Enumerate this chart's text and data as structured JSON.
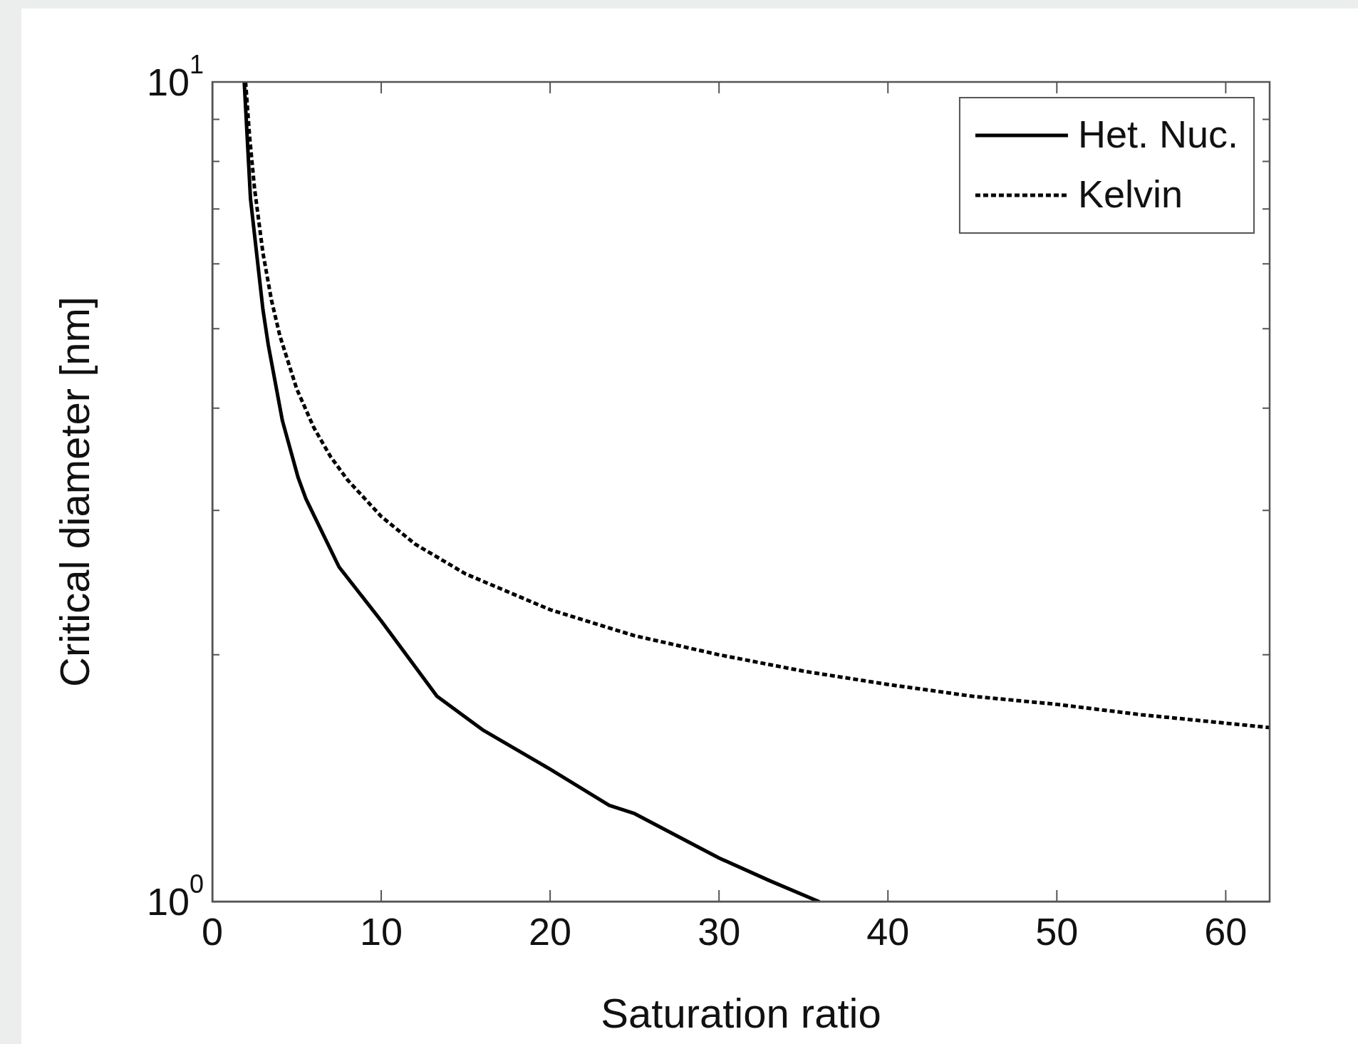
{
  "chart_data": {
    "type": "line",
    "xlabel": "Saturation ratio",
    "ylabel": "Critical diameter [nm]",
    "xlim": [
      0,
      62.6
    ],
    "ylim": [
      1,
      10
    ],
    "xticks": [
      0,
      10,
      20,
      30,
      40,
      50,
      60
    ],
    "yticks": [
      {
        "value": 1,
        "label": "10$^{0}$"
      },
      {
        "value": 2,
        "label": null
      },
      {
        "value": 3,
        "label": null
      },
      {
        "value": 4,
        "label": null
      },
      {
        "value": 5,
        "label": null
      },
      {
        "value": 6,
        "label": null
      },
      {
        "value": 7,
        "label": null
      },
      {
        "value": 8,
        "label": null
      },
      {
        "value": 9,
        "label": null
      },
      {
        "value": 10,
        "label": "10$^{1}$"
      }
    ],
    "log": "y",
    "legend": "top right",
    "marker": "none",
    "series": [
      {
        "name": "Het. Nuc.",
        "color": "#000000",
        "line_style": "solid",
        "x": [
          1.89,
          2.26,
          3.0,
          3.31,
          4.15,
          5.08,
          5.54,
          7.5,
          10,
          13.3,
          16,
          20,
          23.5,
          25,
          30,
          33,
          35.9
        ],
        "values": [
          10,
          7.2,
          5.27,
          4.78,
          3.86,
          3.29,
          3.1,
          2.56,
          2.2,
          1.78,
          1.62,
          1.45,
          1.31,
          1.28,
          1.13,
          1.06,
          1.0
        ]
      },
      {
        "name": "Kelvin",
        "color": "#000000",
        "line_style": "dotted",
        "x": [
          1.97,
          2.2,
          2.5,
          3,
          3.5,
          4,
          5,
          6,
          7,
          8,
          10,
          12,
          15,
          20,
          25,
          30,
          35,
          40,
          45,
          50,
          55,
          62.6
        ],
        "values": [
          10,
          8.61,
          7.41,
          6.18,
          5.42,
          4.9,
          4.22,
          3.79,
          3.49,
          3.27,
          2.95,
          2.73,
          2.51,
          2.27,
          2.11,
          2.0,
          1.91,
          1.84,
          1.78,
          1.74,
          1.69,
          1.63
        ]
      }
    ]
  }
}
